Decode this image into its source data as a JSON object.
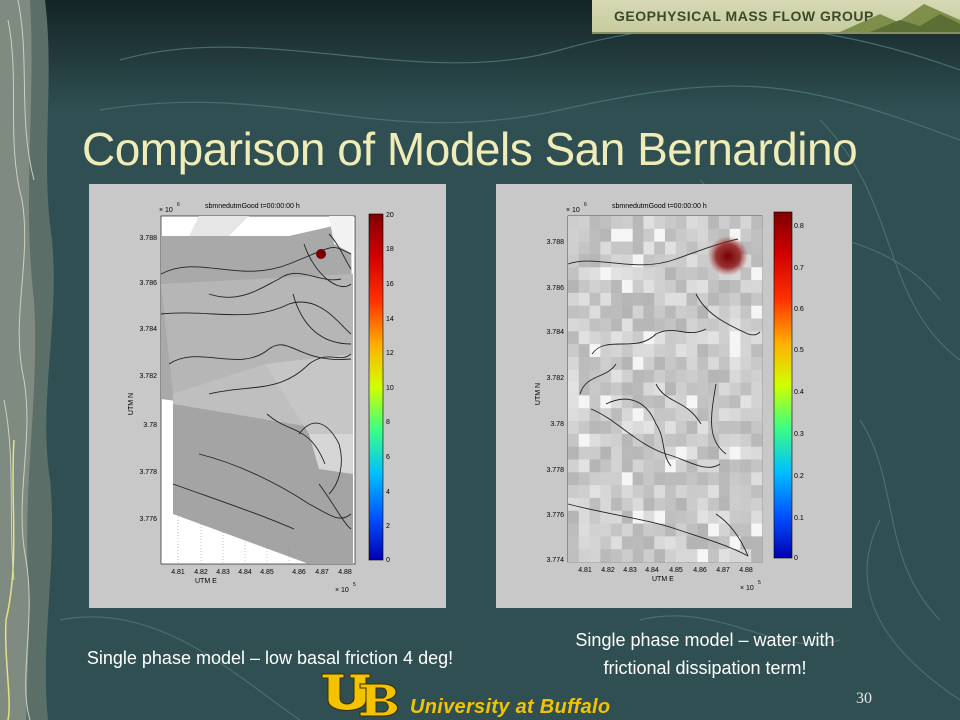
{
  "header": {
    "group_name": "GEOPHYSICAL MASS FLOW GROUP"
  },
  "slide": {
    "title": "Comparison of Models San Bernardino",
    "page_number": "30"
  },
  "footer": {
    "university": "University at Buffalo"
  },
  "plots": [
    {
      "plot_title": "sbmnedutmGood t=00:00:00 h",
      "x_exponent_label": "× 10",
      "x_exponent": "5",
      "y_exponent_label": "× 10",
      "y_exponent": "6",
      "xlabel": "UTM E",
      "ylabel": "UTM N",
      "x_ticks": [
        "4.81",
        "4.82",
        "4.83",
        "4.84",
        "4.85",
        "4.86",
        "4.87",
        "4.88"
      ],
      "y_ticks": [
        "3.788",
        "3.786",
        "3.784",
        "3.782",
        "3.78",
        "3.778",
        "3.776"
      ],
      "colorbar_ticks": [
        "20",
        "18",
        "16",
        "14",
        "12",
        "10",
        "8",
        "6",
        "4",
        "2",
        "0"
      ],
      "caption": "Single phase model – low basal friction 4 deg!"
    },
    {
      "plot_title": "sbmnedutmGood t=00:00:00 h",
      "x_exponent_label": "× 10",
      "x_exponent": "5",
      "y_exponent_label": "× 10",
      "y_exponent": "6",
      "xlabel": "UTM E",
      "ylabel": "UTM N",
      "x_ticks": [
        "4.81",
        "4.82",
        "4.83",
        "4.84",
        "4.85",
        "4.86",
        "4.87",
        "4.88"
      ],
      "y_ticks": [
        "3.788",
        "3.786",
        "3.784",
        "3.782",
        "3.78",
        "3.778",
        "3.776",
        "3.774"
      ],
      "colorbar_ticks": [
        "0.8",
        "0.7",
        "0.6",
        "0.5",
        "0.4",
        "0.3",
        "0.2",
        "0.1",
        "0"
      ],
      "caption_line1": "Single phase model – water with",
      "caption_line2": "frictional dissipation term!"
    }
  ],
  "colors": {
    "title": "#f0ecb8",
    "background": "#2f4f52",
    "logo": "#f3c300"
  }
}
